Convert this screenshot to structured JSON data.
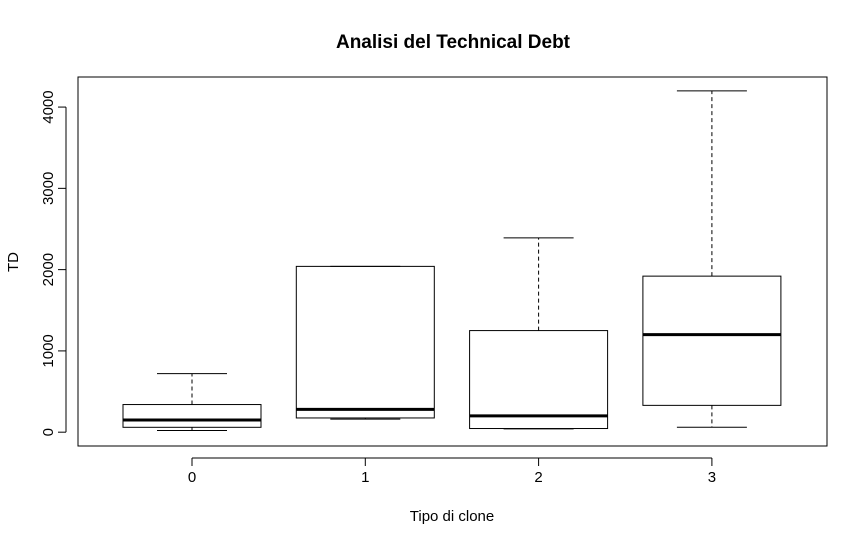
{
  "chart_data": {
    "type": "boxplot",
    "title": "Analisi del Technical Debt",
    "xlabel": "Tipo di clone",
    "ylabel": "TD",
    "categories": [
      "0",
      "1",
      "2",
      "3"
    ],
    "boxes": [
      {
        "category": "0",
        "min": 20,
        "q1": 60,
        "median": 150,
        "q3": 340,
        "max": 720
      },
      {
        "category": "1",
        "min": 160,
        "q1": 175,
        "median": 280,
        "q3": 2040,
        "max": 2040
      },
      {
        "category": "2",
        "min": 40,
        "q1": 45,
        "median": 200,
        "q3": 1250,
        "max": 2390
      },
      {
        "category": "3",
        "min": 60,
        "q1": 330,
        "median": 1200,
        "q3": 1920,
        "max": 4200
      }
    ],
    "y_ticks": [
      0,
      1000,
      2000,
      3000,
      4000
    ],
    "y_tick_labels": [
      "0",
      "1000",
      "2000",
      "3000",
      "4000"
    ],
    "ylim": [
      -170,
      4370
    ],
    "grid": false,
    "colors": {
      "box_fill": "#ffffff",
      "stroke": "#000000"
    }
  }
}
